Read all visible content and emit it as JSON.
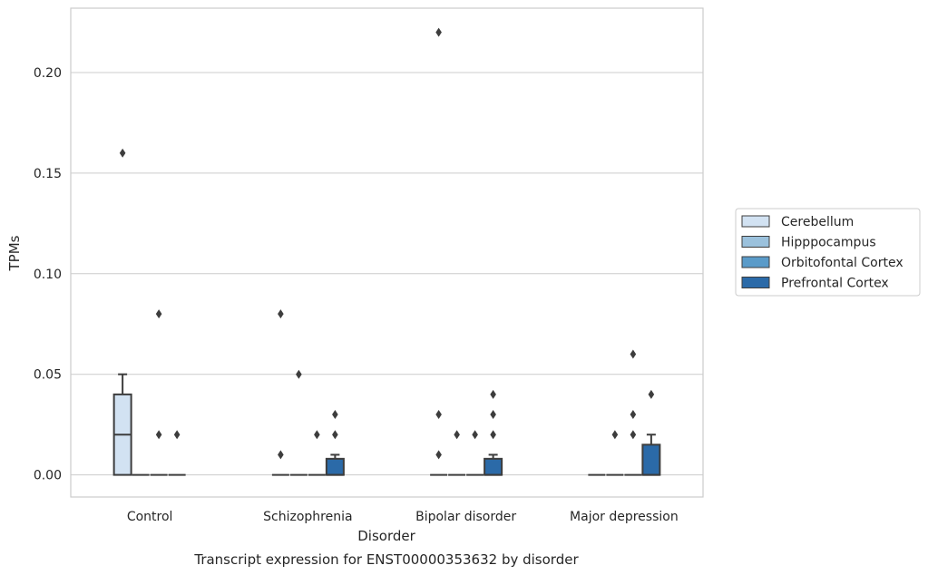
{
  "chart_data": {
    "type": "box",
    "xlabel": "Disorder",
    "ylabel": "TPMs",
    "caption": "Transcript expression for ENST00000353632 by disorder",
    "categories": [
      "Control",
      "Schizophrenia",
      "Bipolar disorder",
      "Major depression"
    ],
    "ylim": [
      -0.011,
      0.232
    ],
    "yticks": [
      0.0,
      0.05,
      0.1,
      0.15,
      0.2
    ],
    "ytick_labels": [
      "0.00",
      "0.05",
      "0.10",
      "0.15",
      "0.20"
    ],
    "grid": "horizontal",
    "legend_placement": "right",
    "series": [
      {
        "name": "Cerebellum",
        "color": "#d2e2f2",
        "boxes": [
          {
            "category": "Control",
            "q1": 0.0,
            "median": 0.02,
            "q3": 0.04,
            "whisker_low": 0.0,
            "whisker_high": 0.05,
            "outliers": [
              0.16
            ]
          },
          {
            "category": "Schizophrenia",
            "q1": 0.0,
            "median": 0.0,
            "q3": 0.0,
            "whisker_low": 0.0,
            "whisker_high": 0.0,
            "outliers": [
              0.08,
              0.01
            ]
          },
          {
            "category": "Bipolar disorder",
            "q1": 0.0,
            "median": 0.0,
            "q3": 0.0,
            "whisker_low": 0.0,
            "whisker_high": 0.0,
            "outliers": [
              0.22,
              0.03,
              0.01
            ]
          },
          {
            "category": "Major depression",
            "q1": 0.0,
            "median": 0.0,
            "q3": 0.0,
            "whisker_low": 0.0,
            "whisker_high": 0.0,
            "outliers": []
          }
        ]
      },
      {
        "name": "Hipppocampus",
        "color": "#9bc1dc",
        "boxes": [
          {
            "category": "Control",
            "q1": 0.0,
            "median": 0.0,
            "q3": 0.0,
            "whisker_low": 0.0,
            "whisker_high": 0.0,
            "outliers": []
          },
          {
            "category": "Schizophrenia",
            "q1": 0.0,
            "median": 0.0,
            "q3": 0.0,
            "whisker_low": 0.0,
            "whisker_high": 0.0,
            "outliers": [
              0.05
            ]
          },
          {
            "category": "Bipolar disorder",
            "q1": 0.0,
            "median": 0.0,
            "q3": 0.0,
            "whisker_low": 0.0,
            "whisker_high": 0.0,
            "outliers": [
              0.02
            ]
          },
          {
            "category": "Major depression",
            "q1": 0.0,
            "median": 0.0,
            "q3": 0.0,
            "whisker_low": 0.0,
            "whisker_high": 0.0,
            "outliers": [
              0.02
            ]
          }
        ]
      },
      {
        "name": "Orbitofontal Cortex",
        "color": "#5a9bc9",
        "boxes": [
          {
            "category": "Control",
            "q1": 0.0,
            "median": 0.0,
            "q3": 0.0,
            "whisker_low": 0.0,
            "whisker_high": 0.0,
            "outliers": [
              0.08,
              0.02
            ]
          },
          {
            "category": "Schizophrenia",
            "q1": 0.0,
            "median": 0.0,
            "q3": 0.0,
            "whisker_low": 0.0,
            "whisker_high": 0.0,
            "outliers": [
              0.02
            ]
          },
          {
            "category": "Bipolar disorder",
            "q1": 0.0,
            "median": 0.0,
            "q3": 0.0,
            "whisker_low": 0.0,
            "whisker_high": 0.0,
            "outliers": [
              0.02
            ]
          },
          {
            "category": "Major depression",
            "q1": 0.0,
            "median": 0.0,
            "q3": 0.0,
            "whisker_low": 0.0,
            "whisker_high": 0.0,
            "outliers": [
              0.06,
              0.03,
              0.02
            ]
          }
        ]
      },
      {
        "name": "Prefrontal Cortex",
        "color": "#2b6aa8",
        "boxes": [
          {
            "category": "Control",
            "q1": 0.0,
            "median": 0.0,
            "q3": 0.0,
            "whisker_low": 0.0,
            "whisker_high": 0.0,
            "outliers": [
              0.02
            ]
          },
          {
            "category": "Schizophrenia",
            "q1": 0.0,
            "median": 0.0,
            "q3": 0.008,
            "whisker_low": 0.0,
            "whisker_high": 0.01,
            "outliers": [
              0.03,
              0.02
            ]
          },
          {
            "category": "Bipolar disorder",
            "q1": 0.0,
            "median": 0.0,
            "q3": 0.008,
            "whisker_low": 0.0,
            "whisker_high": 0.01,
            "outliers": [
              0.04,
              0.03,
              0.02
            ]
          },
          {
            "category": "Major depression",
            "q1": 0.0,
            "median": 0.0,
            "q3": 0.015,
            "whisker_low": 0.0,
            "whisker_high": 0.02,
            "outliers": [
              0.04
            ]
          }
        ]
      }
    ]
  },
  "colors": {
    "grid": "#cccccc",
    "frame": "#cccccc",
    "box_edge": "#3d3d3d",
    "flier": "#3d3d3d"
  }
}
